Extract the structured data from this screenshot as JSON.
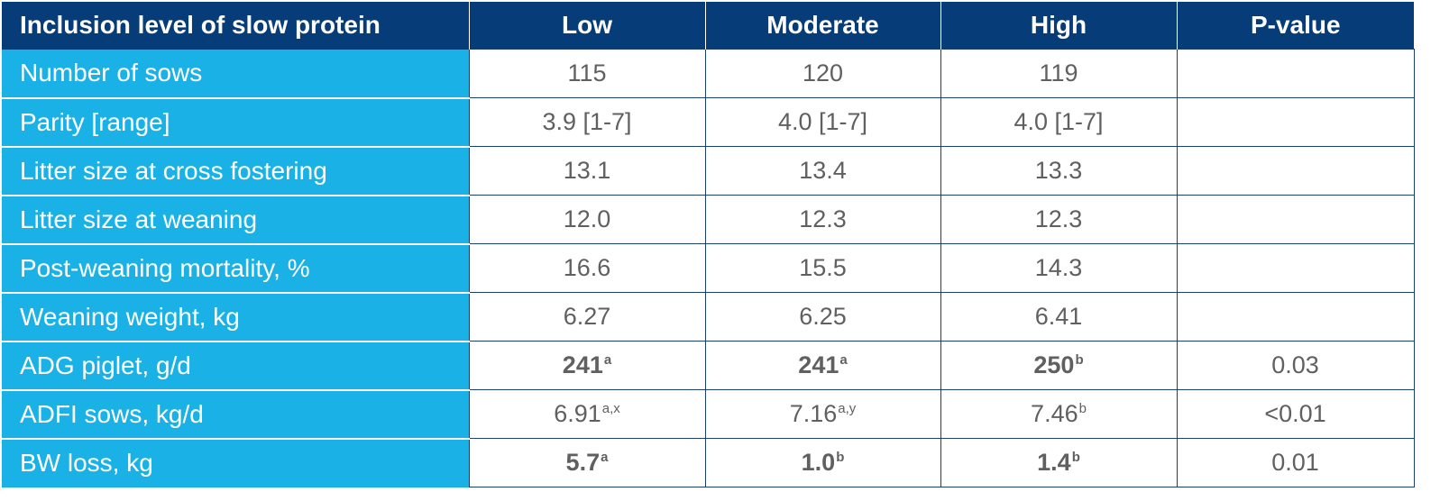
{
  "table": {
    "headers": [
      "Inclusion level of slow protein",
      "Low",
      "Moderate",
      "High",
      "P-value"
    ],
    "rows": [
      {
        "label": "Number of sows",
        "cells": [
          {
            "value": "115",
            "sup": "",
            "bold": false
          },
          {
            "value": "120",
            "sup": "",
            "bold": false
          },
          {
            "value": "119",
            "sup": "",
            "bold": false
          },
          {
            "value": "",
            "sup": "",
            "bold": false
          }
        ]
      },
      {
        "label": "Parity [range]",
        "cells": [
          {
            "value": "3.9 [1-7]",
            "sup": "",
            "bold": false
          },
          {
            "value": "4.0 [1-7]",
            "sup": "",
            "bold": false
          },
          {
            "value": "4.0 [1-7]",
            "sup": "",
            "bold": false
          },
          {
            "value": "",
            "sup": "",
            "bold": false
          }
        ]
      },
      {
        "label": "Litter size at cross fostering",
        "cells": [
          {
            "value": "13.1",
            "sup": "",
            "bold": false
          },
          {
            "value": "13.4",
            "sup": "",
            "bold": false
          },
          {
            "value": "13.3",
            "sup": "",
            "bold": false
          },
          {
            "value": "",
            "sup": "",
            "bold": false
          }
        ]
      },
      {
        "label": "Litter size at weaning",
        "cells": [
          {
            "value": "12.0",
            "sup": "",
            "bold": false
          },
          {
            "value": "12.3",
            "sup": "",
            "bold": false
          },
          {
            "value": "12.3",
            "sup": "",
            "bold": false
          },
          {
            "value": "",
            "sup": "",
            "bold": false
          }
        ]
      },
      {
        "label": "Post-weaning mortality, %",
        "cells": [
          {
            "value": "16.6",
            "sup": "",
            "bold": false
          },
          {
            "value": "15.5",
            "sup": "",
            "bold": false
          },
          {
            "value": "14.3",
            "sup": "",
            "bold": false
          },
          {
            "value": "",
            "sup": "",
            "bold": false
          }
        ]
      },
      {
        "label": "Weaning weight, kg",
        "cells": [
          {
            "value": "6.27",
            "sup": "",
            "bold": false
          },
          {
            "value": "6.25",
            "sup": "",
            "bold": false
          },
          {
            "value": "6.41",
            "sup": "",
            "bold": false
          },
          {
            "value": "",
            "sup": "",
            "bold": false
          }
        ]
      },
      {
        "label": "ADG piglet, g/d",
        "cells": [
          {
            "value": "241",
            "sup": "a",
            "bold": true
          },
          {
            "value": "241",
            "sup": "a",
            "bold": true
          },
          {
            "value": "250",
            "sup": "b",
            "bold": true
          },
          {
            "value": "0.03",
            "sup": "",
            "bold": false
          }
        ]
      },
      {
        "label": "ADFI sows, kg/d",
        "cells": [
          {
            "value": "6.91",
            "sup": "a,x",
            "bold": false
          },
          {
            "value": "7.16",
            "sup": "a,y",
            "bold": false
          },
          {
            "value": "7.46",
            "sup": "b",
            "bold": false
          },
          {
            "value": "<0.01",
            "sup": "",
            "bold": false
          }
        ]
      },
      {
        "label": "BW loss, kg",
        "cells": [
          {
            "value": "5.7",
            "sup": "a",
            "bold": true
          },
          {
            "value": "1.0",
            "sup": "b",
            "bold": true
          },
          {
            "value": "1.4",
            "sup": "b",
            "bold": true
          },
          {
            "value": "0.01",
            "sup": "",
            "bold": false
          }
        ]
      }
    ]
  },
  "colors": {
    "header_bg": "#063d79",
    "row_label_bg": "#1ab2e6",
    "cell_text": "#606060",
    "grid_line": "#1b3f75"
  }
}
